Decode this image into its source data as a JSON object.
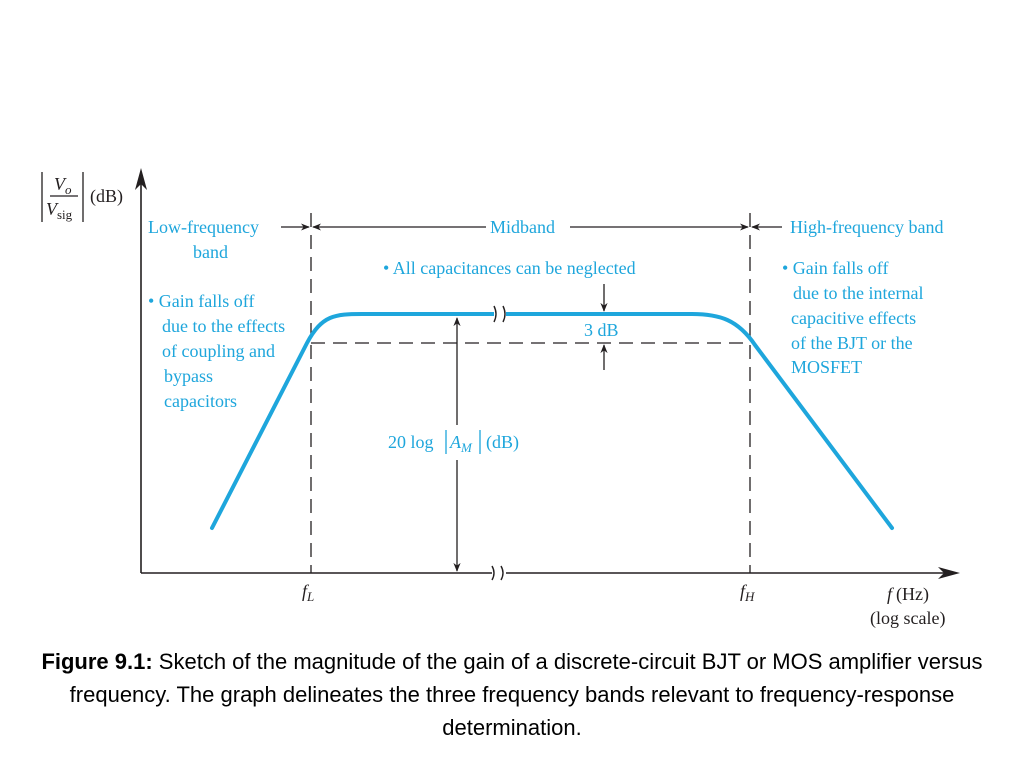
{
  "ylabel": {
    "numerator": "V",
    "numerator_sub": "o",
    "denominator": "V",
    "denominator_sub": "sig",
    "unit": "(dB)"
  },
  "xlabel": {
    "var": "f",
    "unit": "(Hz)",
    "scale": "(log scale)"
  },
  "ticks": {
    "fl_main": "f",
    "fl_sub": "L",
    "fh_main": "f",
    "fh_sub": "H"
  },
  "bands": {
    "low_line1": "Low-frequency",
    "low_line2": "band",
    "mid": "Midband",
    "high": "High-frequency band"
  },
  "notes": {
    "mid": "• All capacitances can be neglected",
    "low": [
      "• Gain falls off",
      "due to the effects",
      "of coupling and",
      "bypass",
      "capacitors"
    ],
    "high": [
      "• Gain falls off",
      "due to the internal",
      "capacitive effects",
      "of the BJT or the",
      "MOSFET"
    ]
  },
  "annotations": {
    "three_db": "3 dB",
    "gain_prefix": "20 log",
    "gain_var": "A",
    "gain_sub": "M",
    "gain_unit": "(dB)"
  },
  "caption": {
    "label": "Figure 9.1:",
    "text": " Sketch of the magnitude of the gain of a discrete-circuit BJT or MOS amplifier versus frequency. The graph delineates the three frequency bands relevant to frequency-response determination."
  },
  "colors": {
    "curve": "#1ea6dc",
    "annotation_text": "#1ea6dc",
    "axes": "#231f20"
  }
}
